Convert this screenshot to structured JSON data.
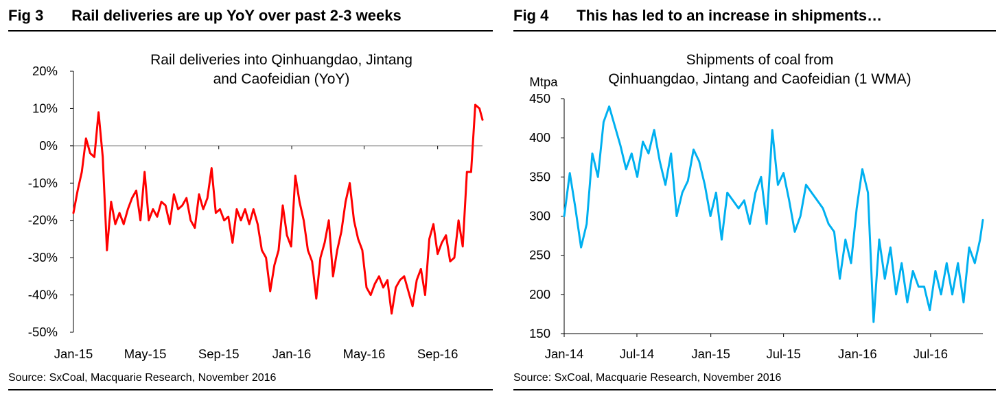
{
  "figures": [
    {
      "label": "Fig 3",
      "heading": "Rail deliveries are up YoY over past 2-3 weeks",
      "source": "Source: SxCoal, Macquarie Research, November 2016"
    },
    {
      "label": "Fig 4",
      "heading": "This has led to an increase in shipments…",
      "source": "Source: SxCoal, Macquarie Research, November 2016"
    }
  ],
  "chart_data": [
    {
      "type": "line",
      "title": "Rail deliveries into Qinhuangdao, Jintang and Caofeidian (YoY)",
      "xlabel": "",
      "ylabel": "",
      "color": "#ff0000",
      "ylim": [
        -50,
        20
      ],
      "xlim": [
        "2015-01-01",
        "2016-11-15"
      ],
      "y_ticks": [
        -50,
        -40,
        -30,
        -20,
        -10,
        0,
        10,
        20
      ],
      "y_tick_labels": [
        "-50%",
        "-40%",
        "-30%",
        "-20%",
        "-10%",
        "0%",
        "10%",
        "20%"
      ],
      "x_ticks": [
        "2015-01-01",
        "2015-05-01",
        "2015-09-01",
        "2016-01-01",
        "2016-05-01",
        "2016-09-01"
      ],
      "x_tick_labels": [
        "Jan-15",
        "May-15",
        "Sep-15",
        "Jan-16",
        "May-16",
        "Sep-16"
      ],
      "zero_line": true,
      "grid": false,
      "series": [
        {
          "x": [
            "2015-01-01",
            "2015-01-08",
            "2015-01-15",
            "2015-01-22",
            "2015-01-29",
            "2015-02-05",
            "2015-02-12",
            "2015-02-19",
            "2015-02-26",
            "2015-03-05",
            "2015-03-12",
            "2015-03-19",
            "2015-03-26",
            "2015-04-02",
            "2015-04-09",
            "2015-04-16",
            "2015-04-23",
            "2015-04-30",
            "2015-05-07",
            "2015-05-14",
            "2015-05-21",
            "2015-05-28",
            "2015-06-04",
            "2015-06-11",
            "2015-06-18",
            "2015-06-25",
            "2015-07-02",
            "2015-07-09",
            "2015-07-16",
            "2015-07-23",
            "2015-07-30",
            "2015-08-06",
            "2015-08-13",
            "2015-08-20",
            "2015-08-27",
            "2015-09-03",
            "2015-09-10",
            "2015-09-17",
            "2015-09-24",
            "2015-10-01",
            "2015-10-08",
            "2015-10-15",
            "2015-10-22",
            "2015-10-29",
            "2015-11-05",
            "2015-11-12",
            "2015-11-19",
            "2015-11-26",
            "2015-12-03",
            "2015-12-10",
            "2015-12-17",
            "2015-12-24",
            "2015-12-31",
            "2016-01-07",
            "2016-01-14",
            "2016-01-21",
            "2016-01-28",
            "2016-02-04",
            "2016-02-11",
            "2016-02-18",
            "2016-02-25",
            "2016-03-03",
            "2016-03-10",
            "2016-03-17",
            "2016-03-24",
            "2016-03-31",
            "2016-04-07",
            "2016-04-14",
            "2016-04-21",
            "2016-04-28",
            "2016-05-05",
            "2016-05-12",
            "2016-05-19",
            "2016-05-26",
            "2016-06-02",
            "2016-06-09",
            "2016-06-16",
            "2016-06-23",
            "2016-06-30",
            "2016-07-07",
            "2016-07-14",
            "2016-07-21",
            "2016-07-28",
            "2016-08-04",
            "2016-08-11",
            "2016-08-18",
            "2016-08-25",
            "2016-09-01",
            "2016-09-08",
            "2016-09-15",
            "2016-09-22",
            "2016-09-29",
            "2016-10-06",
            "2016-10-13",
            "2016-10-20",
            "2016-10-27",
            "2016-11-03",
            "2016-11-10",
            "2016-11-15"
          ],
          "values": [
            -18,
            -12,
            -7,
            2,
            -2,
            -3,
            9,
            -3,
            -28,
            -15,
            -21,
            -18,
            -21,
            -17,
            -14,
            -12,
            -20,
            -7,
            -20,
            -17,
            -19,
            -15,
            -16,
            -21,
            -13,
            -17,
            -16,
            -14,
            -20,
            -22,
            -13,
            -17,
            -14,
            -6,
            -18,
            -17,
            -20,
            -19,
            -26,
            -17,
            -20,
            -17,
            -21,
            -17,
            -21,
            -28,
            -30,
            -39,
            -32,
            -28,
            -16,
            -24,
            -27,
            -8,
            -15,
            -20,
            -28,
            -31,
            -41,
            -30,
            -26,
            -20,
            -35,
            -28,
            -23,
            -15,
            -10,
            -20,
            -25,
            -28,
            -38,
            -40,
            -37,
            -35,
            -38,
            -36,
            -45,
            -38,
            -36,
            -35,
            -39,
            -43,
            -36,
            -33,
            -40,
            -25,
            -21,
            -29,
            -26,
            -24,
            -31,
            -30,
            -20,
            -27,
            -7,
            -7,
            11,
            10,
            7
          ]
        }
      ]
    },
    {
      "type": "line",
      "title": "Shipments of coal from Qinhuangdao, Jintang and Caofeidian (1 WMA)",
      "xlabel": "",
      "ylabel": "Mtpa",
      "color": "#00b0f0",
      "ylim": [
        150,
        450
      ],
      "xlim": [
        "2014-01-01",
        "2016-11-08"
      ],
      "y_ticks": [
        150,
        200,
        250,
        300,
        350,
        400,
        450
      ],
      "y_tick_labels": [
        "150",
        "200",
        "250",
        "300",
        "350",
        "400",
        "450"
      ],
      "x_ticks": [
        "2014-01-01",
        "2014-07-01",
        "2015-01-01",
        "2015-07-01",
        "2016-01-01",
        "2016-07-01"
      ],
      "x_tick_labels": [
        "Jan-14",
        "Jul-14",
        "Jan-15",
        "Jul-15",
        "Jan-16",
        "Jul-16"
      ],
      "grid": false,
      "series": [
        {
          "x": [
            "2014-01-01",
            "2014-01-15",
            "2014-01-29",
            "2014-02-12",
            "2014-02-26",
            "2014-03-12",
            "2014-03-26",
            "2014-04-09",
            "2014-04-23",
            "2014-05-07",
            "2014-05-21",
            "2014-06-04",
            "2014-06-18",
            "2014-07-02",
            "2014-07-16",
            "2014-07-30",
            "2014-08-13",
            "2014-08-27",
            "2014-09-10",
            "2014-09-24",
            "2014-10-08",
            "2014-10-22",
            "2014-11-05",
            "2014-11-19",
            "2014-12-03",
            "2014-12-17",
            "2014-12-31",
            "2015-01-14",
            "2015-01-28",
            "2015-02-11",
            "2015-02-25",
            "2015-03-11",
            "2015-03-25",
            "2015-04-08",
            "2015-04-22",
            "2015-05-06",
            "2015-05-20",
            "2015-06-03",
            "2015-06-17",
            "2015-07-01",
            "2015-07-15",
            "2015-07-29",
            "2015-08-12",
            "2015-08-26",
            "2015-09-09",
            "2015-09-23",
            "2015-10-07",
            "2015-10-21",
            "2015-11-04",
            "2015-11-18",
            "2015-12-02",
            "2015-12-16",
            "2015-12-30",
            "2016-01-13",
            "2016-01-27",
            "2016-02-10",
            "2016-02-24",
            "2016-03-09",
            "2016-03-23",
            "2016-04-06",
            "2016-04-20",
            "2016-05-04",
            "2016-05-18",
            "2016-06-01",
            "2016-06-15",
            "2016-06-29",
            "2016-07-13",
            "2016-07-27",
            "2016-08-10",
            "2016-08-24",
            "2016-09-07",
            "2016-09-21",
            "2016-10-05",
            "2016-10-19",
            "2016-11-01",
            "2016-11-08"
          ],
          "values": [
            300,
            355,
            310,
            260,
            290,
            380,
            350,
            420,
            440,
            415,
            390,
            360,
            380,
            350,
            395,
            380,
            410,
            370,
            340,
            380,
            300,
            330,
            345,
            385,
            370,
            340,
            300,
            330,
            270,
            330,
            320,
            310,
            320,
            290,
            330,
            350,
            290,
            410,
            340,
            355,
            320,
            280,
            300,
            340,
            330,
            320,
            310,
            290,
            280,
            220,
            270,
            240,
            310,
            360,
            330,
            165,
            270,
            220,
            260,
            200,
            240,
            190,
            230,
            210,
            210,
            180,
            230,
            200,
            240,
            200,
            240,
            190,
            260,
            240,
            270,
            295
          ]
        }
      ]
    }
  ]
}
